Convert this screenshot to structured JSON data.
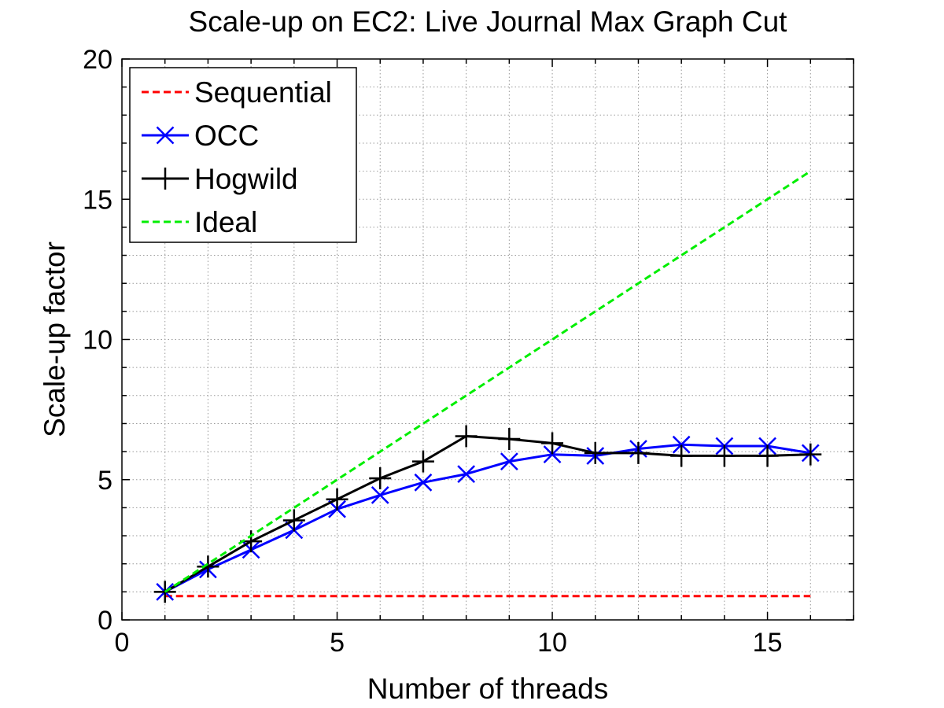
{
  "chart_data": {
    "type": "line",
    "title": "Scale-up on EC2: Live Journal Max Graph Cut",
    "xlabel": "Number of threads",
    "ylabel": "Scale-up factor",
    "xlim": [
      0,
      17
    ],
    "ylim": [
      0,
      20
    ],
    "xticks": [
      0,
      5,
      10,
      15
    ],
    "yticks": [
      0,
      5,
      10,
      15,
      20
    ],
    "grid": true,
    "legend_position": "top-left",
    "series": [
      {
        "name": "Sequential",
        "color": "#ff0000",
        "style": "dashed",
        "marker": "none",
        "x": [
          1,
          16
        ],
        "y": [
          0.85,
          0.85
        ]
      },
      {
        "name": "OCC",
        "color": "#0000ff",
        "style": "solid",
        "marker": "x",
        "x": [
          1,
          2,
          3,
          4,
          5,
          6,
          7,
          8,
          9,
          10,
          11,
          12,
          13,
          14,
          15,
          16
        ],
        "y": [
          1.0,
          1.8,
          2.5,
          3.2,
          3.95,
          4.45,
          4.9,
          5.2,
          5.65,
          5.9,
          5.85,
          6.1,
          6.25,
          6.2,
          6.2,
          5.95
        ]
      },
      {
        "name": "Hogwild",
        "color": "#000000",
        "style": "solid",
        "marker": "+",
        "x": [
          1,
          2,
          3,
          4,
          5,
          6,
          7,
          8,
          9,
          10,
          11,
          12,
          13,
          14,
          15,
          16
        ],
        "y": [
          1.0,
          1.9,
          2.8,
          3.55,
          4.3,
          5.05,
          5.65,
          6.55,
          6.45,
          6.3,
          5.95,
          5.95,
          5.85,
          5.85,
          5.85,
          5.9
        ]
      },
      {
        "name": "Ideal",
        "color": "#00ee00",
        "style": "dashed",
        "marker": "none",
        "x": [
          1,
          16
        ],
        "y": [
          1,
          16
        ]
      }
    ]
  }
}
